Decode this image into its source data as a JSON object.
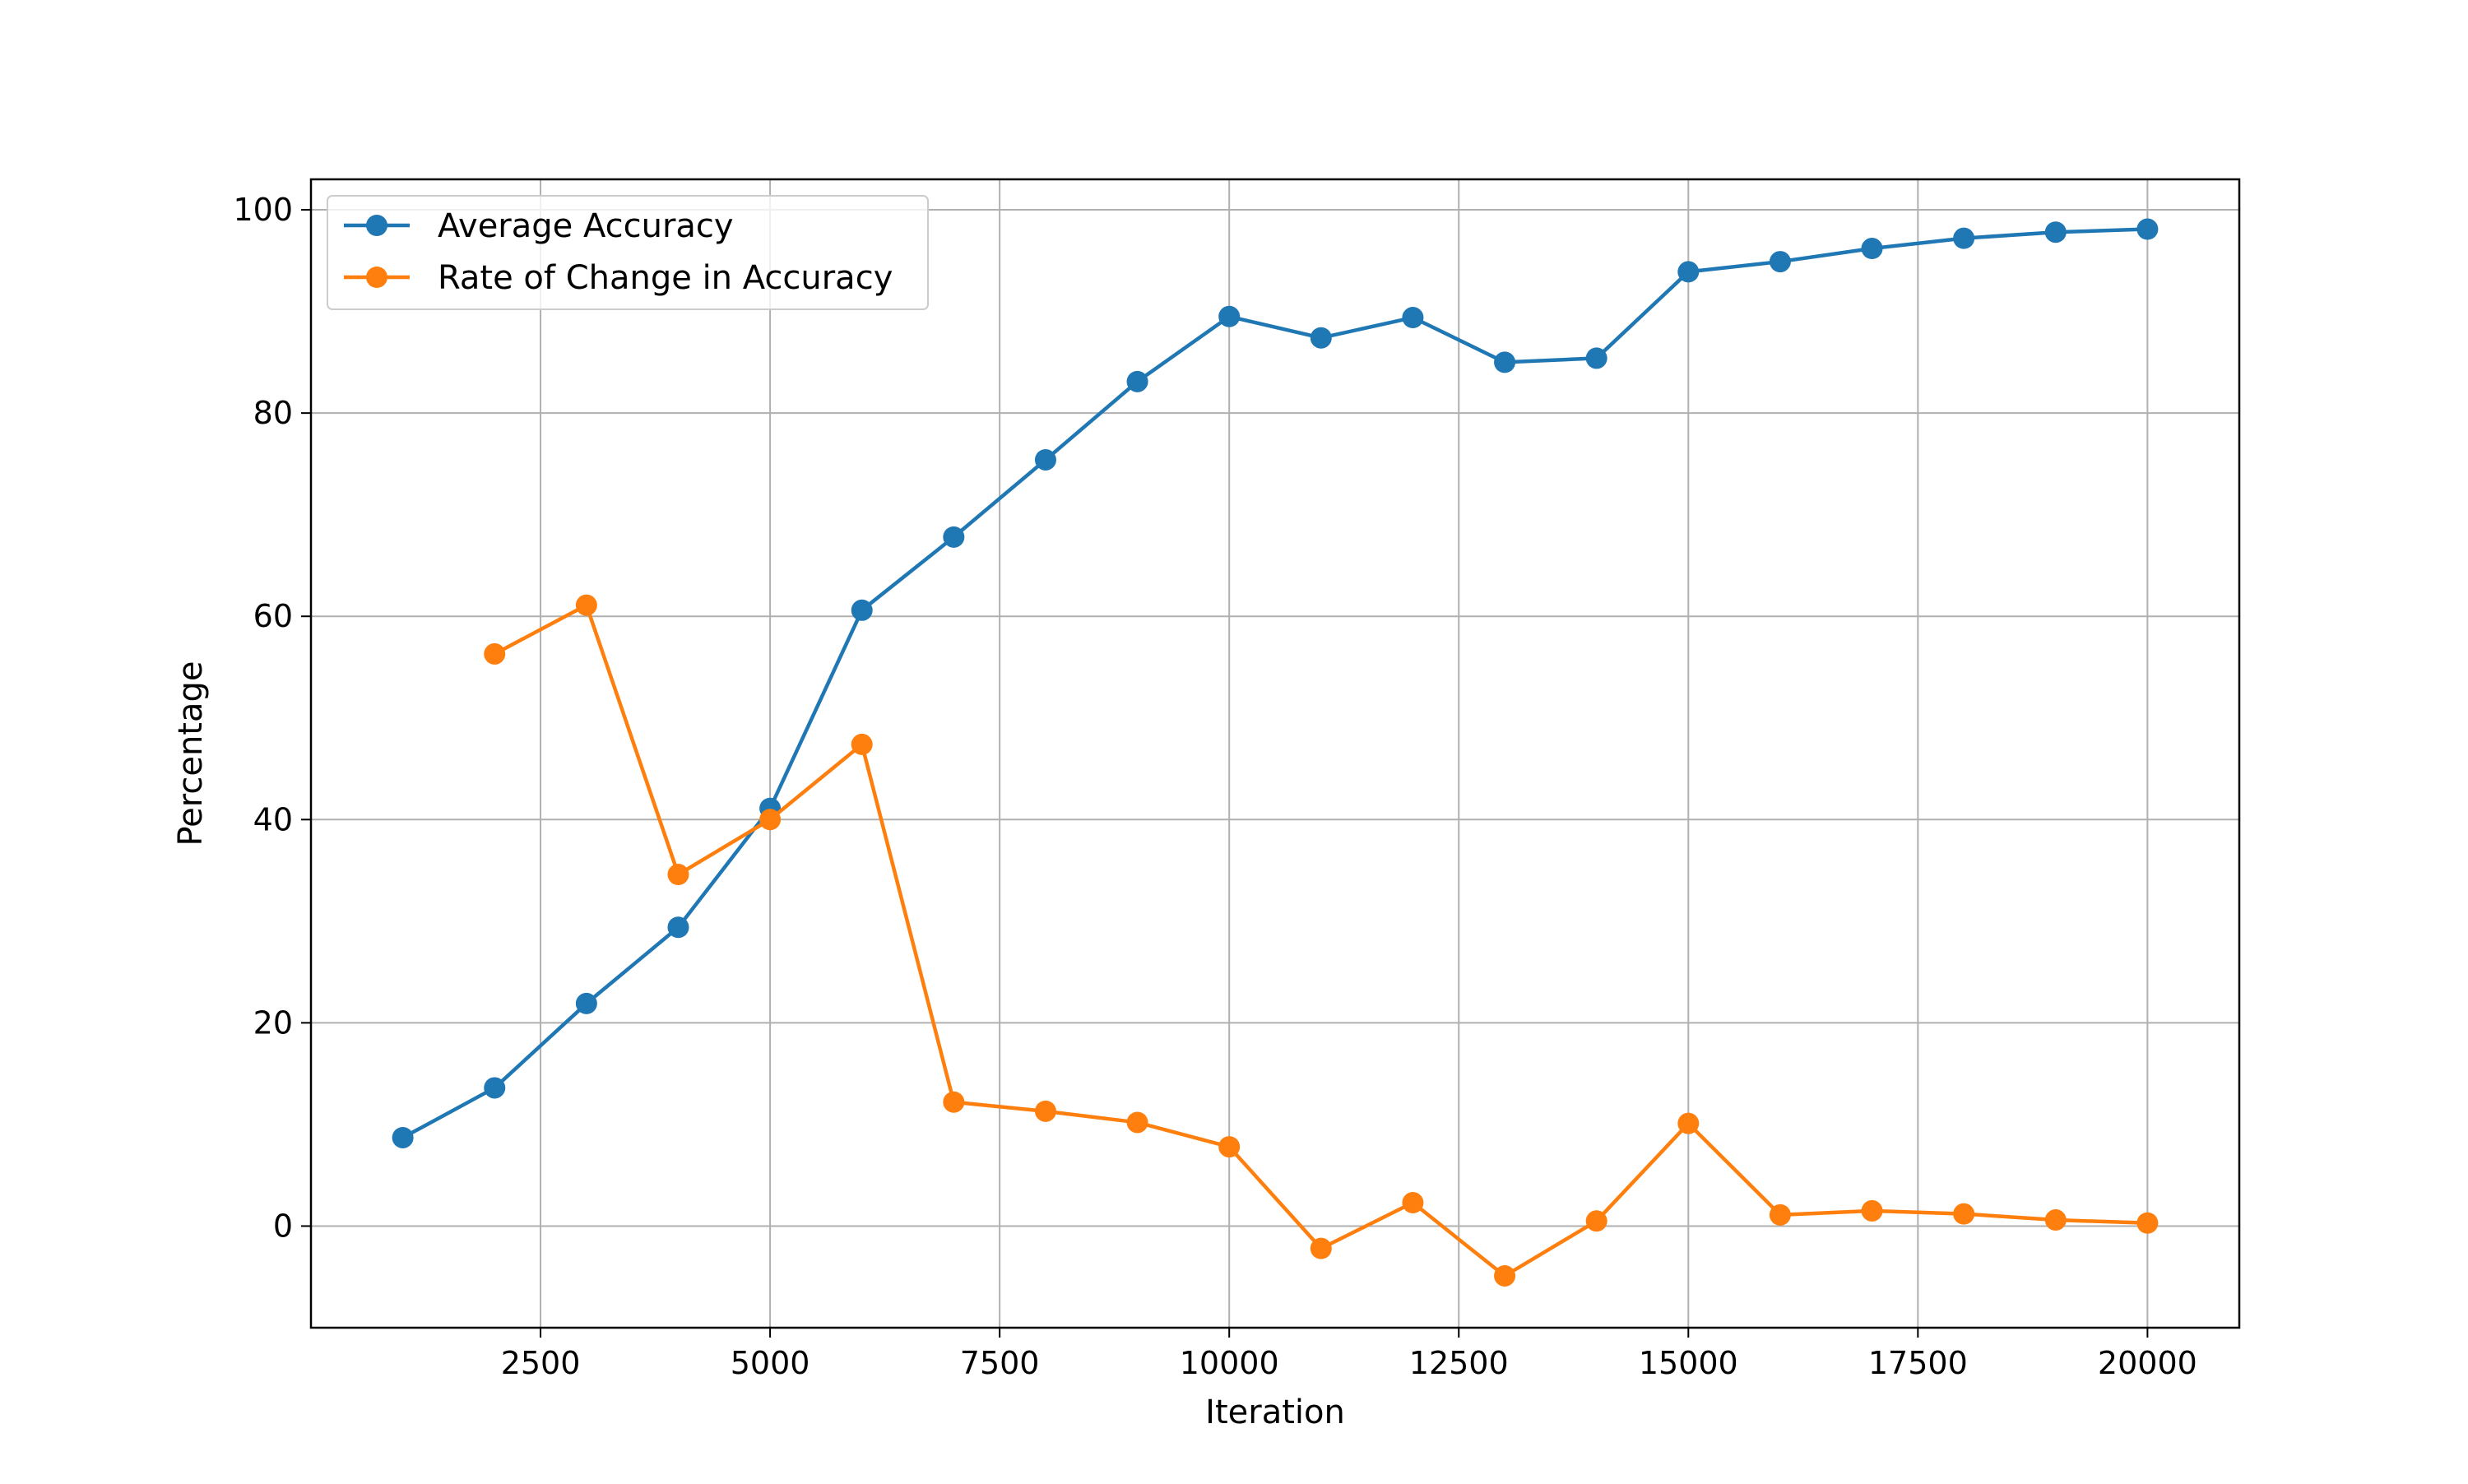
{
  "chart_data": {
    "type": "line",
    "title": "",
    "xlabel": "Iteration",
    "ylabel": "Percentage",
    "xlim": [
      0,
      21000
    ],
    "ylim": [
      -10,
      103
    ],
    "xticks": [
      2500,
      5000,
      7500,
      10000,
      12500,
      15000,
      17500,
      20000
    ],
    "yticks": [
      0,
      20,
      40,
      60,
      80,
      100
    ],
    "grid": true,
    "legend_position": "top-left",
    "series": [
      {
        "name": "Average Accuracy",
        "color": "#1f77b4",
        "marker": "circle",
        "x": [
          1000,
          2000,
          3000,
          4000,
          5000,
          6000,
          7000,
          8000,
          9000,
          10000,
          11000,
          12000,
          13000,
          14000,
          15000,
          16000,
          17000,
          18000,
          19000,
          20000
        ],
        "values": [
          8.7,
          13.6,
          21.9,
          29.4,
          41.1,
          60.6,
          67.8,
          75.4,
          83.1,
          89.5,
          87.4,
          89.4,
          85.0,
          85.4,
          93.9,
          94.9,
          96.2,
          97.2,
          97.8,
          98.1
        ]
      },
      {
        "name": "Rate of Change in Accuracy",
        "color": "#ff7f0e",
        "marker": "circle",
        "x": [
          2000,
          3000,
          4000,
          5000,
          6000,
          7000,
          8000,
          9000,
          10000,
          11000,
          12000,
          13000,
          14000,
          15000,
          16000,
          17000,
          18000,
          19000,
          20000
        ],
        "values": [
          56.3,
          61.1,
          34.6,
          40.0,
          47.4,
          12.2,
          11.3,
          10.2,
          7.8,
          -2.2,
          2.3,
          -4.9,
          0.5,
          10.1,
          1.1,
          1.5,
          1.2,
          0.6,
          0.3
        ]
      }
    ]
  }
}
